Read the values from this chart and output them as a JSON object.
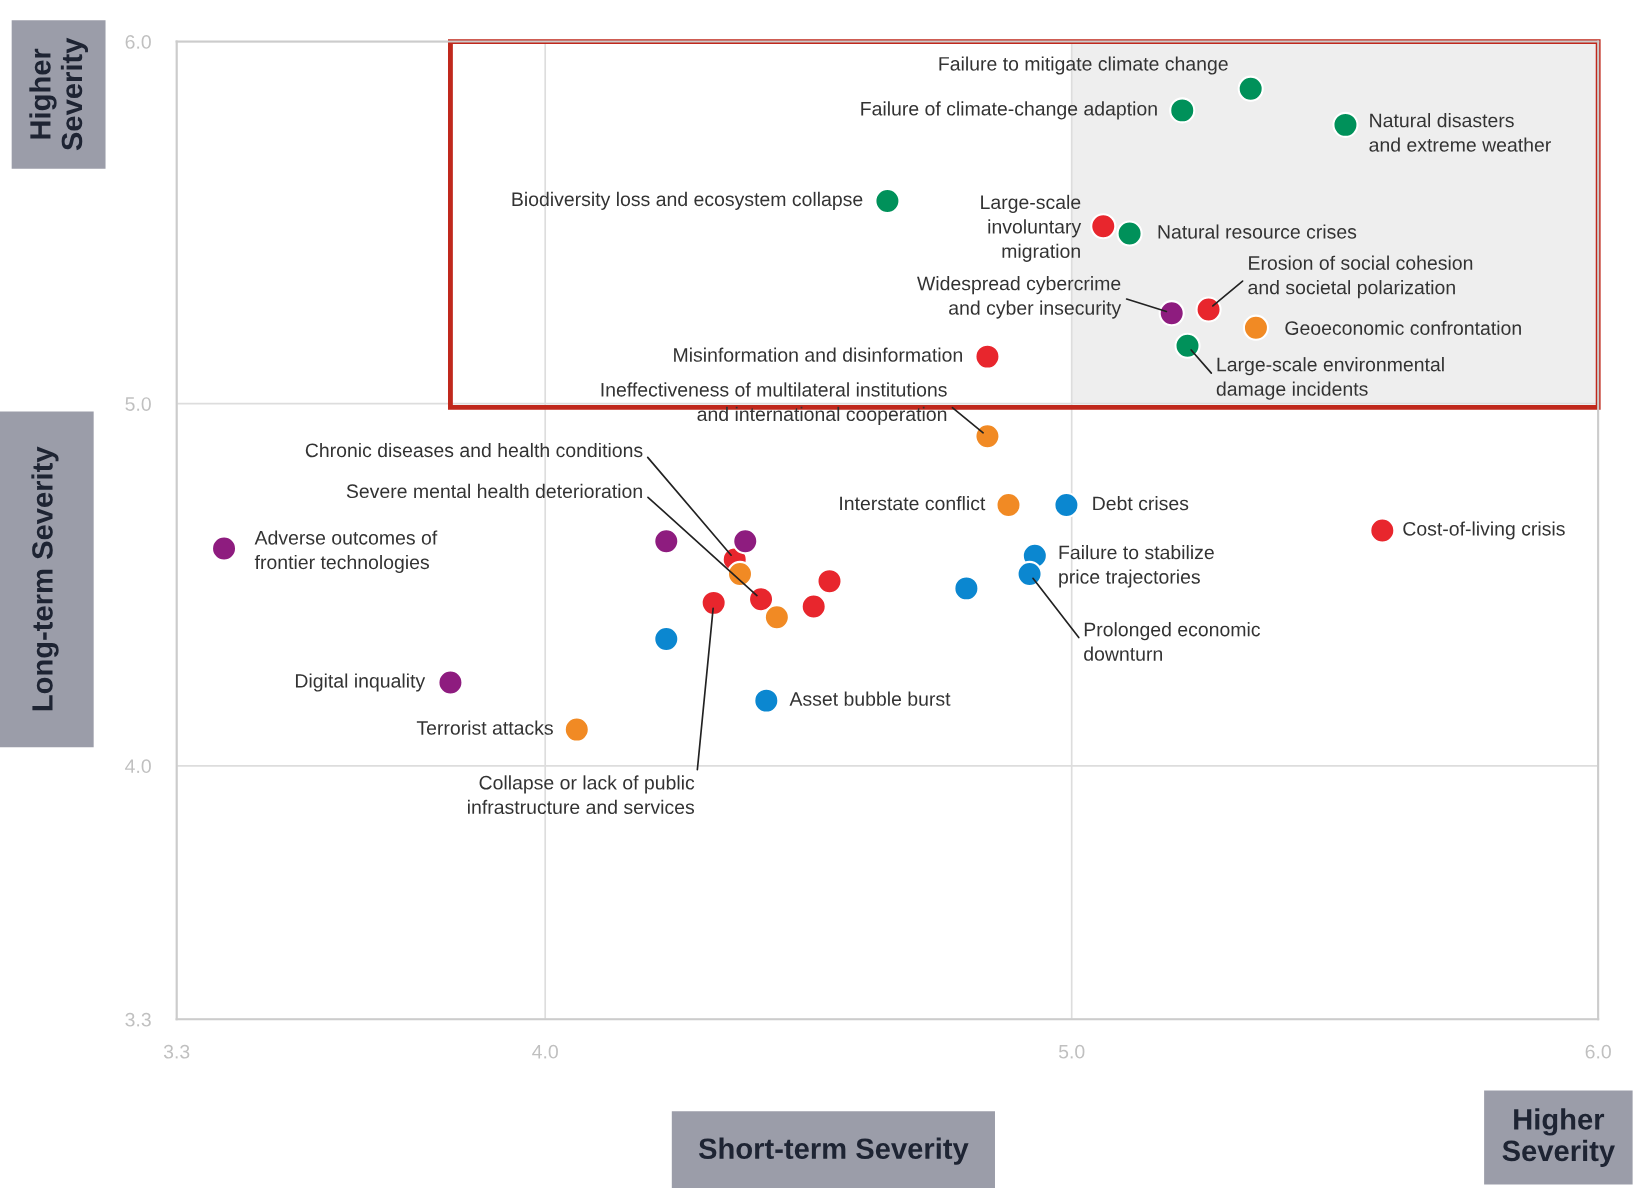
{
  "chart_data": {
    "type": "scatter",
    "xlabel": "Short-term Severity",
    "ylabel": "Long-term Severity",
    "xlim": [
      3.3,
      6.0
    ],
    "ylim": [
      3.3,
      6.0
    ],
    "xticks": [
      3.3,
      {
        "value": 4,
        "label": "4.0"
      },
      {
        "value": 5,
        "label": "5.0"
      },
      {
        "value": 6,
        "label": "6.0"
      }
    ],
    "yticks": [
      3.3,
      {
        "value": 4,
        "label": "4.0"
      },
      {
        "value": 5,
        "label": "5.0"
      },
      {
        "value": 6,
        "label": "6.0"
      }
    ],
    "grid": true,
    "marker": "circle",
    "series": [
      {
        "color": "#00915a",
        "x": [
          5.34,
          5.21,
          5.52,
          4.65,
          5.11,
          5.22
        ],
        "values": [
          5.87,
          5.81,
          5.77,
          5.56,
          5.47,
          5.16
        ]
      },
      {
        "color": "#e8262d",
        "x": [
          5.06,
          5.26,
          4.84,
          5.59,
          4.36,
          4.41,
          4.32,
          4.51,
          4.54
        ],
        "values": [
          5.49,
          5.26,
          5.13,
          4.65,
          4.57,
          4.46,
          4.45,
          4.44,
          4.51
        ]
      },
      {
        "color": "#8e1c7f",
        "x": [
          5.19,
          3.39,
          3.82,
          4.23,
          4.38
        ],
        "values": [
          5.25,
          4.6,
          4.23,
          4.62,
          4.62
        ]
      },
      {
        "color": "#f18a24",
        "x": [
          5.35,
          4.84,
          4.88,
          4.06,
          4.37,
          4.44
        ],
        "values": [
          5.21,
          4.91,
          4.72,
          4.1,
          4.53,
          4.41
        ]
      },
      {
        "color": "#0b87d0",
        "x": [
          4.99,
          4.93,
          4.92,
          4.8,
          4.23,
          4.42
        ],
        "values": [
          4.72,
          4.58,
          4.53,
          4.49,
          4.35,
          4.18
        ]
      }
    ],
    "annotations": [
      "Higher\nSeverity",
      "Higher\nSeverity",
      {
        "text": "Failure to mitigate climate change",
        "x": 5.34,
        "y": 5.87
      },
      {
        "text": "Failure of climate-change adaption",
        "x": 5.21,
        "y": 5.81
      },
      {
        "text": "Natural disasters\nand extreme weather",
        "x": 5.52,
        "y": 5.77
      },
      {
        "text": "Biodiversity loss and ecosystem collapse",
        "x": 4.65,
        "y": 5.56
      },
      {
        "text": "Large-scale\ninvoluntary\nmigration",
        "x": 5.06,
        "y": 5.49
      },
      {
        "text": "Natural resource crises",
        "x": 5.11,
        "y": 5.47
      },
      {
        "text": "Erosion of social cohesion\nand societal polarization",
        "x": 5.26,
        "y": 5.26
      },
      {
        "text": "Widespread cybercrime\nand cyber insecurity",
        "x": 5.19,
        "y": 5.25
      },
      {
        "text": "Geoeconomic confrontation",
        "x": 5.35,
        "y": 5.21
      },
      {
        "text": "Large-scale environmental\ndamage incidents",
        "x": 5.22,
        "y": 5.16
      },
      {
        "text": "Misinformation and disinformation",
        "x": 4.84,
        "y": 5.13
      },
      {
        "text": "Ineffectiveness of multilateral institutions\nand international cooperation",
        "x": 4.84,
        "y": 4.91
      },
      {
        "text": "Chronic diseases and health conditions",
        "x": 4.36,
        "y": 4.57
      },
      {
        "text": "Severe mental health deterioration",
        "x": 4.41,
        "y": 4.46
      },
      {
        "text": "Interstate conflict",
        "x": 4.88,
        "y": 4.72
      },
      {
        "text": "Debt crises",
        "x": 4.99,
        "y": 4.72
      },
      {
        "text": "Cost-of-living crisis",
        "x": 5.59,
        "y": 4.65
      },
      {
        "text": "Adverse outcomes of\nfrontier technologies",
        "x": 3.39,
        "y": 4.6
      },
      {
        "text": "Failure to stabilize\nprice trajectories",
        "x": 4.93,
        "y": 4.58
      },
      {
        "text": "Prolonged economic\ndownturn",
        "x": 4.92,
        "y": 4.53
      },
      {
        "text": "Digital inquality",
        "x": 3.82,
        "y": 4.23
      },
      {
        "text": "Asset bubble burst",
        "x": 4.42,
        "y": 4.18
      },
      {
        "text": "Terrorist attacks",
        "x": 4.06,
        "y": 4.1
      },
      {
        "text": "Collapse or lack of public\ninfrastructure and services",
        "x": 4.32,
        "y": 4.45
      }
    ]
  }
}
